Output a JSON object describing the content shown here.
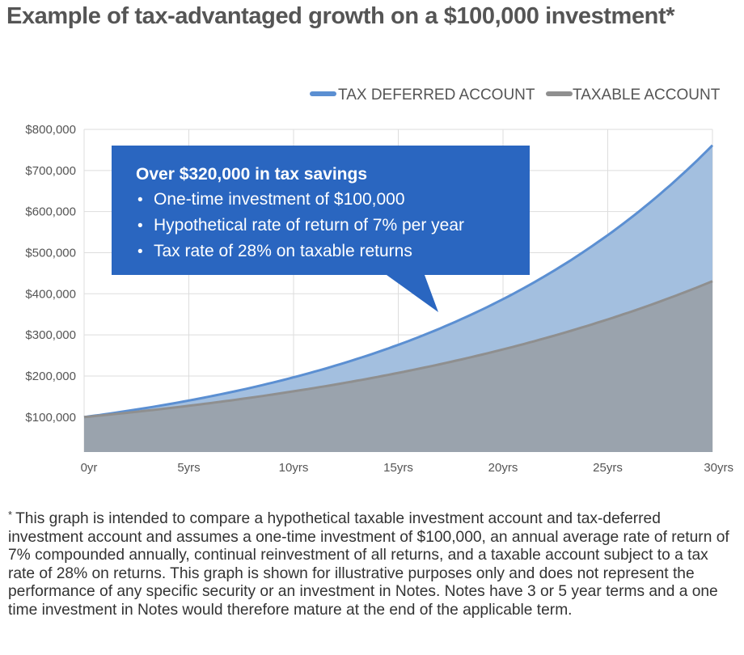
{
  "title": "Example of tax-advantaged growth on a $100,000 investment*",
  "chart_data": {
    "type": "area",
    "x": [
      0,
      5,
      10,
      15,
      20,
      25,
      30
    ],
    "xtick_labels": [
      "0yr",
      "5yrs",
      "10yrs",
      "15yrs",
      "20yrs",
      "25yrs",
      "30yrs"
    ],
    "ytick_values": [
      100000,
      200000,
      300000,
      400000,
      500000,
      600000,
      700000,
      800000
    ],
    "ytick_labels": [
      "$100,000",
      "$200,000",
      "$300,000",
      "$400,000",
      "$500,000",
      "$600,000",
      "$700,000",
      "$800,000"
    ],
    "xlim": [
      0,
      30
    ],
    "ylim": [
      15000,
      800000
    ],
    "grid": true,
    "legend_position": "top-right",
    "series": [
      {
        "name": "TAX DEFERRED ACCOUNT",
        "color": "#5b8fd2",
        "fill": "#a3bfdf",
        "values": [
          100000,
          140255,
          196715,
          275903,
          386968,
          542743,
          761226
        ]
      },
      {
        "name": "TAXABLE ACCOUNT",
        "color": "#8f8f8f",
        "fill": "#9aa3ad",
        "values": [
          100000,
          127552,
          162695,
          207519,
          264694,
          337621,
          430641
        ]
      }
    ],
    "annotation": {
      "heading": "Over $320,000 in tax savings",
      "bullets": [
        "One-time investment of $100,000",
        "Hypothetical rate of return of 7% per year",
        "Tax rate of 28% on taxable returns"
      ],
      "bullet_symbol": "•",
      "fill": "#2a66c0"
    }
  },
  "footnote": {
    "marker": "*",
    "text": "This graph is intended to compare a hypothetical taxable investment account and tax-deferred investment account and assumes a one-time investment of $100,000, an annual average rate of return of 7% compounded annually, continual reinvestment of all returns, and a taxable account subject to a tax rate of 28% on returns. This graph is shown for illustrative purposes only and does not represent the performance of any specific security or an investment in Notes. Notes have 3 or 5 year terms and a one time investment in Notes would therefore mature at the end of the applicable term."
  }
}
